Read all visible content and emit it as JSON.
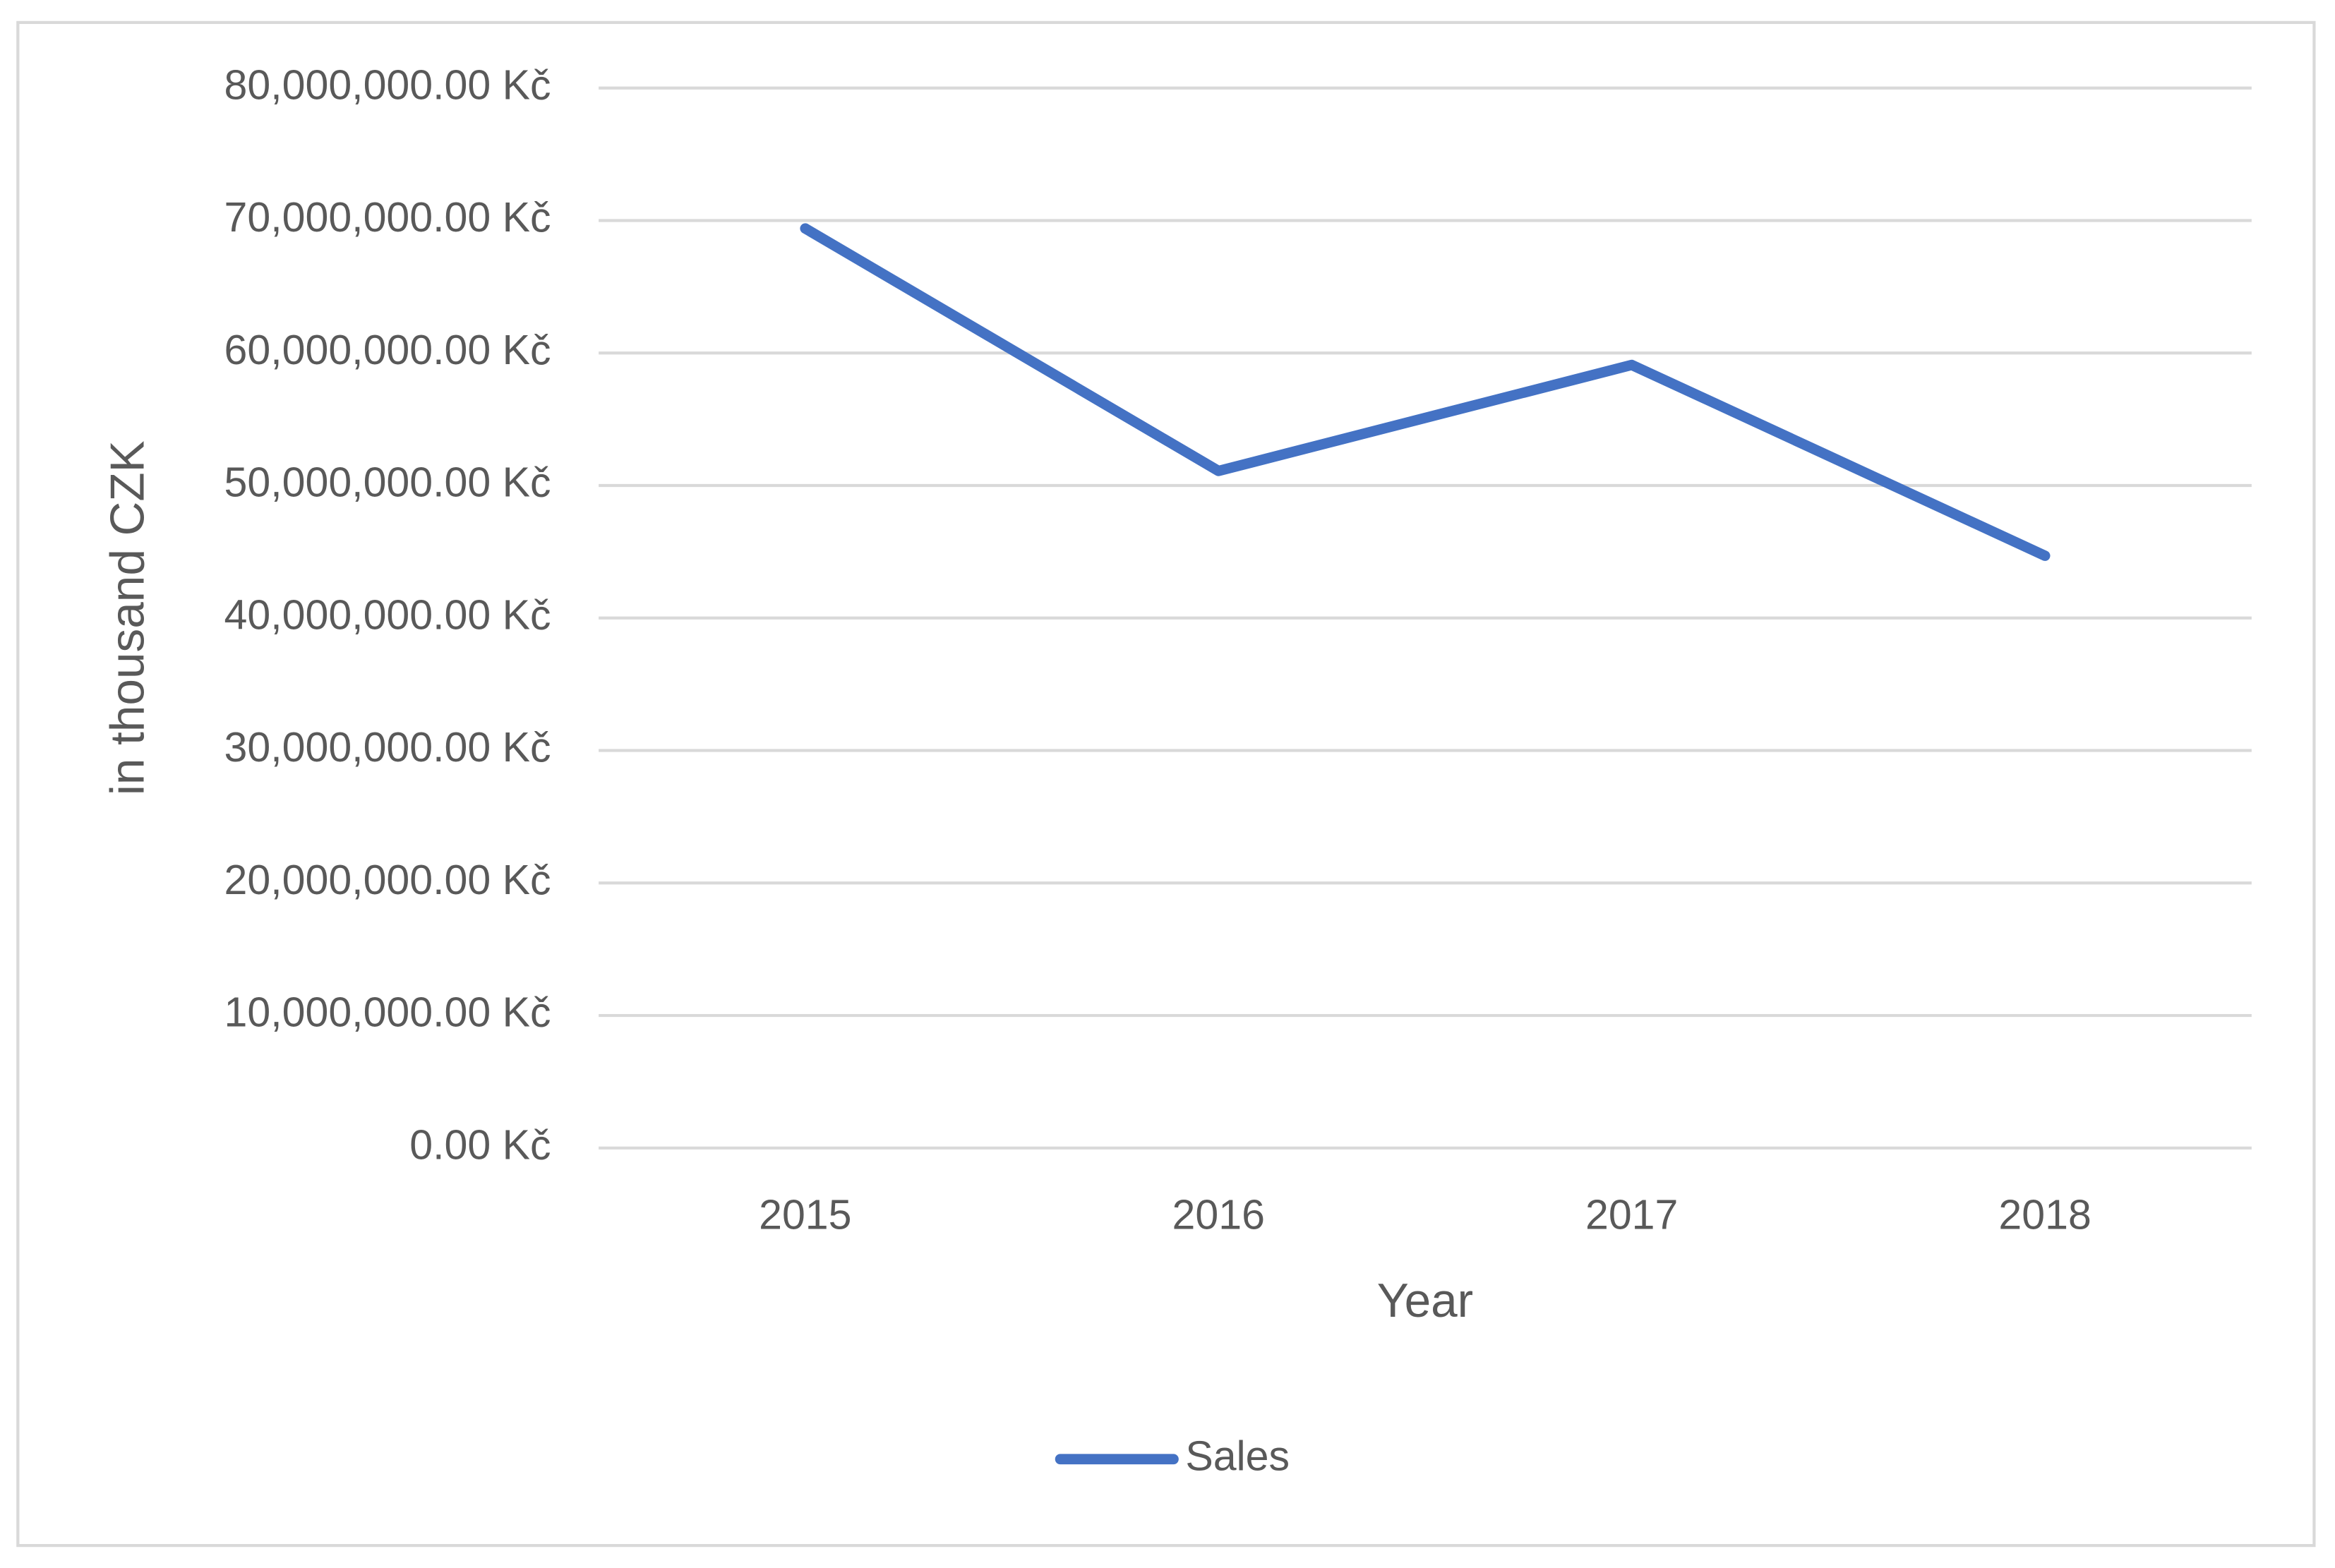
{
  "chart_data": {
    "type": "line",
    "x_label": "Year",
    "y_label": "in thousand CZK",
    "categories": [
      "2015",
      "2016",
      "2017",
      "2018"
    ],
    "series": [
      {
        "name": "Sales",
        "color": "#4472c4",
        "values": [
          69400000,
          51100000,
          59100000,
          44700000
        ]
      }
    ],
    "ylim": [
      0,
      80000000
    ],
    "yticks": [
      {
        "value": 0,
        "label": "0.00 Kč"
      },
      {
        "value": 10000000,
        "label": "10,000,000.00 Kč"
      },
      {
        "value": 20000000,
        "label": "20,000,000.00 Kč"
      },
      {
        "value": 30000000,
        "label": "30,000,000.00 Kč"
      },
      {
        "value": 40000000,
        "label": "40,000,000.00 Kč"
      },
      {
        "value": 50000000,
        "label": "50,000,000.00 Kč"
      },
      {
        "value": 60000000,
        "label": "60,000,000.00 Kč"
      },
      {
        "value": 70000000,
        "label": "70,000,000.00 Kč"
      },
      {
        "value": 80000000,
        "label": "80,000,000.00 Kč"
      }
    ],
    "grid": true,
    "legend": "bottom"
  }
}
